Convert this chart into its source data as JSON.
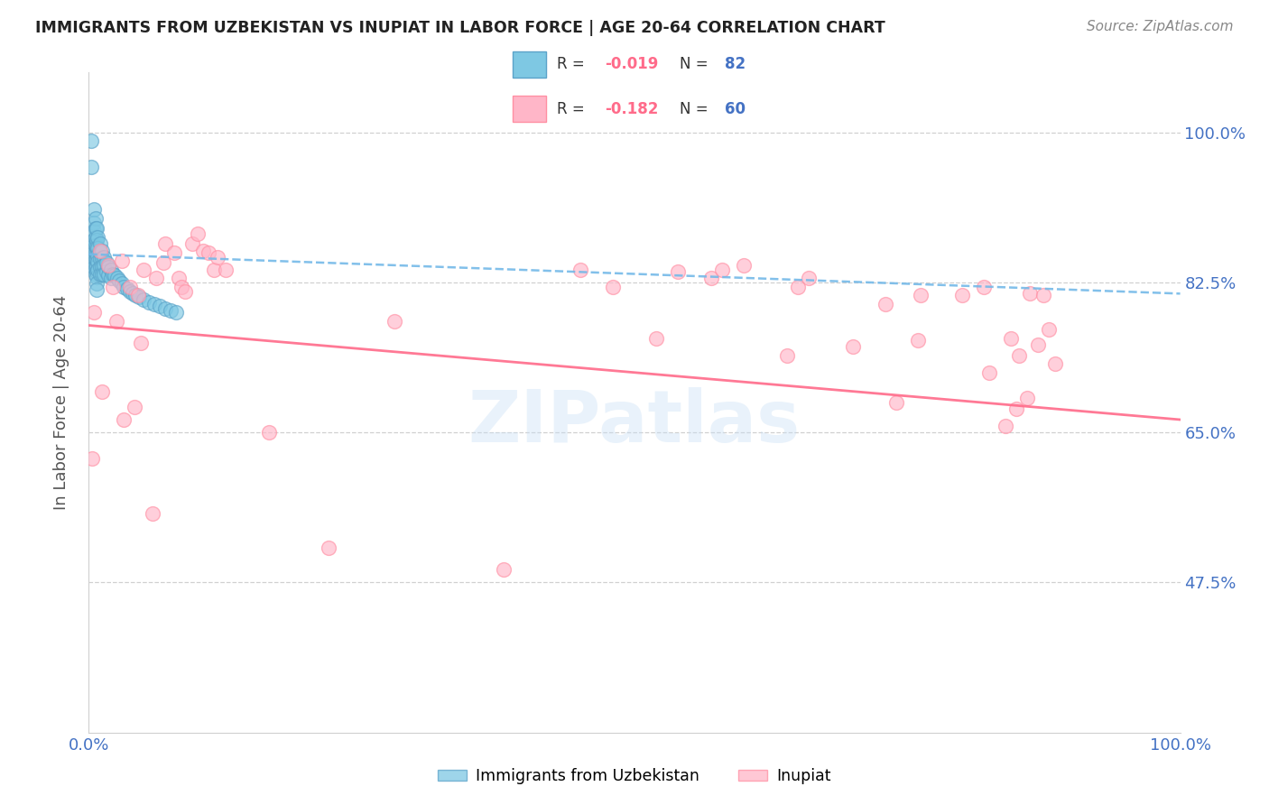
{
  "title": "IMMIGRANTS FROM UZBEKISTAN VS INUPIAT IN LABOR FORCE | AGE 20-64 CORRELATION CHART",
  "source": "Source: ZipAtlas.com",
  "ylabel": "In Labor Force | Age 20-64",
  "ytick_labels": [
    "100.0%",
    "82.5%",
    "65.0%",
    "47.5%"
  ],
  "ytick_values": [
    1.0,
    0.825,
    0.65,
    0.475
  ],
  "xlim": [
    0.0,
    1.0
  ],
  "ylim": [
    0.3,
    1.07
  ],
  "color_blue": "#7ec8e3",
  "color_blue_edge": "#5ba3c9",
  "color_blue_line": "#74b9e8",
  "color_pink": "#ffb6c8",
  "color_pink_edge": "#ff8fa3",
  "color_pink_line": "#ff6b8a",
  "color_blue_text": "#4472c4",
  "blue_trend_y_start": 0.858,
  "blue_trend_y_end": 0.812,
  "pink_trend_y_start": 0.775,
  "pink_trend_y_end": 0.665,
  "scatter_blue_x": [
    0.002,
    0.002,
    0.005,
    0.005,
    0.005,
    0.005,
    0.005,
    0.005,
    0.005,
    0.005,
    0.006,
    0.006,
    0.006,
    0.006,
    0.006,
    0.006,
    0.006,
    0.006,
    0.007,
    0.007,
    0.007,
    0.007,
    0.007,
    0.007,
    0.007,
    0.007,
    0.007,
    0.007,
    0.008,
    0.008,
    0.008,
    0.008,
    0.008,
    0.01,
    0.01,
    0.01,
    0.01,
    0.01,
    0.012,
    0.012,
    0.012,
    0.012,
    0.014,
    0.014,
    0.014,
    0.016,
    0.016,
    0.018,
    0.018,
    0.02,
    0.02,
    0.022,
    0.024,
    0.026,
    0.028,
    0.03,
    0.032,
    0.035,
    0.038,
    0.04,
    0.043,
    0.046,
    0.05,
    0.055,
    0.06,
    0.065,
    0.07,
    0.075,
    0.08
  ],
  "scatter_blue_y": [
    0.99,
    0.96,
    0.91,
    0.895,
    0.885,
    0.875,
    0.868,
    0.86,
    0.852,
    0.843,
    0.9,
    0.888,
    0.878,
    0.868,
    0.86,
    0.852,
    0.843,
    0.835,
    0.888,
    0.875,
    0.866,
    0.858,
    0.851,
    0.844,
    0.838,
    0.831,
    0.824,
    0.817,
    0.878,
    0.865,
    0.857,
    0.849,
    0.84,
    0.87,
    0.86,
    0.852,
    0.843,
    0.835,
    0.862,
    0.853,
    0.844,
    0.835,
    0.855,
    0.845,
    0.835,
    0.848,
    0.838,
    0.843,
    0.833,
    0.84,
    0.83,
    0.835,
    0.833,
    0.83,
    0.827,
    0.824,
    0.82,
    0.818,
    0.815,
    0.812,
    0.81,
    0.808,
    0.805,
    0.802,
    0.8,
    0.798,
    0.795,
    0.792,
    0.79
  ],
  "scatter_pink_x": [
    0.003,
    0.005,
    0.01,
    0.012,
    0.018,
    0.022,
    0.025,
    0.03,
    0.032,
    0.038,
    0.042,
    0.045,
    0.048,
    0.05,
    0.058,
    0.062,
    0.068,
    0.07,
    0.078,
    0.082,
    0.085,
    0.088,
    0.095,
    0.1,
    0.105,
    0.11,
    0.115,
    0.118,
    0.125,
    0.165,
    0.22,
    0.28,
    0.38,
    0.45,
    0.48,
    0.52,
    0.54,
    0.57,
    0.58,
    0.6,
    0.64,
    0.65,
    0.66,
    0.7,
    0.73,
    0.74,
    0.76,
    0.762,
    0.8,
    0.82,
    0.825,
    0.84,
    0.845,
    0.85,
    0.852,
    0.86,
    0.862,
    0.87,
    0.875,
    0.88,
    0.885
  ],
  "scatter_pink_y": [
    0.62,
    0.79,
    0.862,
    0.698,
    0.845,
    0.82,
    0.78,
    0.85,
    0.665,
    0.82,
    0.68,
    0.81,
    0.755,
    0.84,
    0.556,
    0.83,
    0.848,
    0.87,
    0.86,
    0.83,
    0.82,
    0.815,
    0.87,
    0.882,
    0.862,
    0.86,
    0.84,
    0.855,
    0.84,
    0.65,
    0.515,
    0.78,
    0.49,
    0.84,
    0.82,
    0.76,
    0.838,
    0.83,
    0.84,
    0.845,
    0.74,
    0.82,
    0.83,
    0.75,
    0.8,
    0.685,
    0.758,
    0.81,
    0.81,
    0.82,
    0.72,
    0.658,
    0.76,
    0.678,
    0.74,
    0.69,
    0.812,
    0.752,
    0.81,
    0.77,
    0.73
  ]
}
